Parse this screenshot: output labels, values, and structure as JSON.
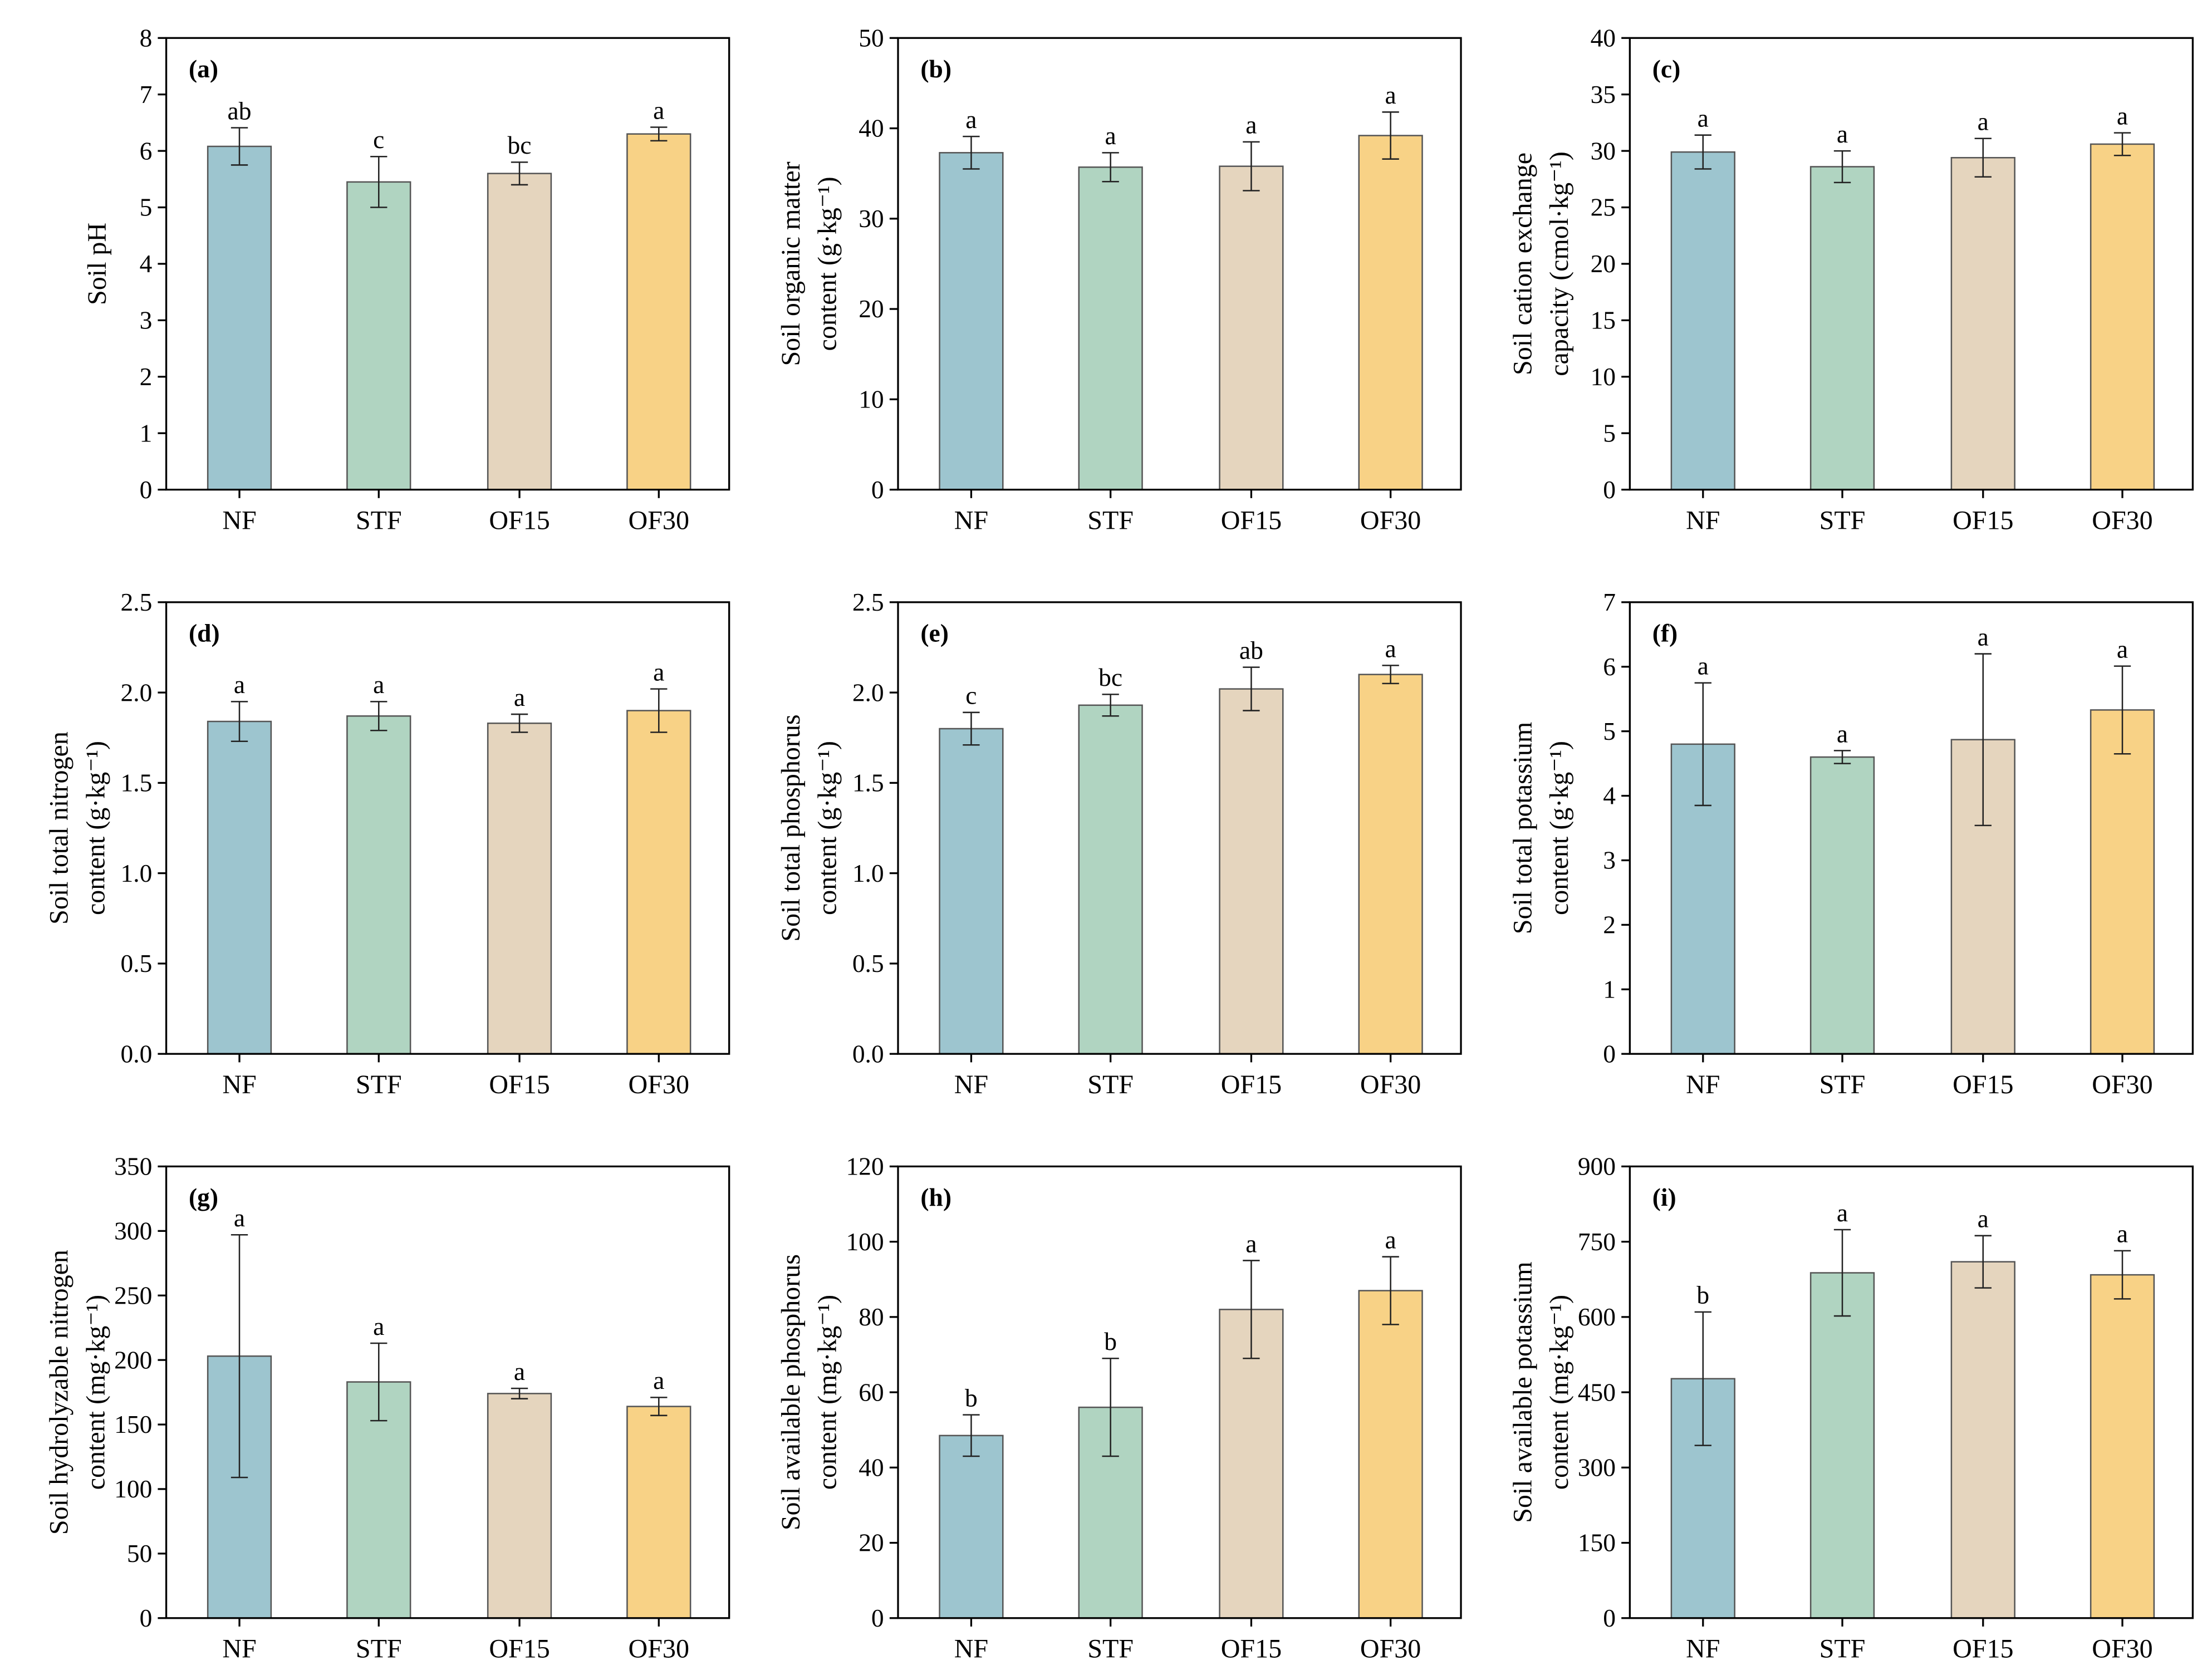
{
  "colors": {
    "NF": "#9DC5CF",
    "STF": "#B0D4C1",
    "OF15": "#E5D5BE",
    "OF30": "#F8D286",
    "edge": "#555555",
    "axis": "#000000"
  },
  "chart_data": [
    {
      "type": "bar",
      "panel": "(a)",
      "ylabel": [
        "Soil pH"
      ],
      "categories": [
        "NF",
        "STF",
        "OF15",
        "OF30"
      ],
      "ylim": [
        0,
        8
      ],
      "yticks": [
        "0",
        "1",
        "2",
        "3",
        "4",
        "5",
        "6",
        "7",
        "8"
      ],
      "values": [
        6.08,
        5.45,
        5.6,
        6.3
      ],
      "errors": [
        0.33,
        0.45,
        0.2,
        0.12
      ],
      "letters": [
        "ab",
        "c",
        "bc",
        "a"
      ]
    },
    {
      "type": "bar",
      "panel": "(b)",
      "ylabel": [
        "Soil organic matter",
        "content (g·kg⁻¹)"
      ],
      "categories": [
        "NF",
        "STF",
        "OF15",
        "OF30"
      ],
      "ylim": [
        0,
        50
      ],
      "yticks": [
        "0",
        "10",
        "20",
        "30",
        "40",
        "50"
      ],
      "values": [
        37.3,
        35.7,
        35.8,
        39.2
      ],
      "errors": [
        1.8,
        1.6,
        2.7,
        2.6
      ],
      "letters": [
        "a",
        "a",
        "a",
        "a"
      ]
    },
    {
      "type": "bar",
      "panel": "(c)",
      "ylabel": [
        "Soil cation exchange",
        "capacity (cmol·kg⁻¹)"
      ],
      "categories": [
        "NF",
        "STF",
        "OF15",
        "OF30"
      ],
      "ylim": [
        0,
        40
      ],
      "yticks": [
        "0",
        "5",
        "10",
        "15",
        "20",
        "25",
        "30",
        "35",
        "40"
      ],
      "values": [
        29.9,
        28.6,
        29.4,
        30.6
      ],
      "errors": [
        1.5,
        1.4,
        1.7,
        1.0
      ],
      "letters": [
        "a",
        "a",
        "a",
        "a"
      ]
    },
    {
      "type": "bar",
      "panel": "(d)",
      "ylabel": [
        "Soil total nitrogen",
        "content (g·kg⁻¹)"
      ],
      "categories": [
        "NF",
        "STF",
        "OF15",
        "OF30"
      ],
      "ylim": [
        0,
        2.5
      ],
      "yticks": [
        "0.0",
        "0.5",
        "1.0",
        "1.5",
        "2.0",
        "2.5"
      ],
      "values": [
        1.84,
        1.87,
        1.83,
        1.9
      ],
      "errors": [
        0.11,
        0.08,
        0.05,
        0.12
      ],
      "letters": [
        "a",
        "a",
        "a",
        "a"
      ]
    },
    {
      "type": "bar",
      "panel": "(e)",
      "ylabel": [
        "Soil total phosphorus",
        "content (g·kg⁻¹)"
      ],
      "categories": [
        "NF",
        "STF",
        "OF15",
        "OF30"
      ],
      "ylim": [
        0,
        2.5
      ],
      "yticks": [
        "0.0",
        "0.5",
        "1.0",
        "1.5",
        "2.0",
        "2.5"
      ],
      "values": [
        1.8,
        1.93,
        2.02,
        2.1
      ],
      "errors": [
        0.09,
        0.06,
        0.12,
        0.05
      ],
      "letters": [
        "c",
        "bc",
        "ab",
        "a"
      ]
    },
    {
      "type": "bar",
      "panel": "(f)",
      "ylabel": [
        "Soil total potassium",
        "content (g·kg⁻¹)"
      ],
      "categories": [
        "NF",
        "STF",
        "OF15",
        "OF30"
      ],
      "ylim": [
        0,
        7
      ],
      "yticks": [
        "0",
        "1",
        "2",
        "3",
        "4",
        "5",
        "6",
        "7"
      ],
      "values": [
        4.8,
        4.6,
        4.87,
        5.33
      ],
      "errors": [
        0.95,
        0.1,
        1.33,
        0.68
      ],
      "letters": [
        "a",
        "a",
        "a",
        "a"
      ]
    },
    {
      "type": "bar",
      "panel": "(g)",
      "ylabel": [
        "Soil hydrolyzable nitrogen",
        "content (mg·kg⁻¹)"
      ],
      "categories": [
        "NF",
        "STF",
        "OF15",
        "OF30"
      ],
      "ylim": [
        0,
        350
      ],
      "yticks": [
        "0",
        "50",
        "100",
        "150",
        "200",
        "250",
        "300",
        "350"
      ],
      "values": [
        203,
        183,
        174,
        164
      ],
      "errors": [
        94,
        30,
        4,
        7
      ],
      "letters": [
        "a",
        "a",
        "a",
        "a"
      ]
    },
    {
      "type": "bar",
      "panel": "(h)",
      "ylabel": [
        "Soil available phosphorus",
        "content (mg·kg⁻¹)"
      ],
      "categories": [
        "NF",
        "STF",
        "OF15",
        "OF30"
      ],
      "ylim": [
        0,
        120
      ],
      "yticks": [
        "0",
        "20",
        "40",
        "60",
        "80",
        "100",
        "120"
      ],
      "values": [
        48.5,
        56,
        82,
        87
      ],
      "errors": [
        5.5,
        13,
        13,
        9
      ],
      "letters": [
        "b",
        "b",
        "a",
        "a"
      ]
    },
    {
      "type": "bar",
      "panel": "(i)",
      "ylabel": [
        "Soil available potassium",
        "content (mg·kg⁻¹)"
      ],
      "categories": [
        "NF",
        "STF",
        "OF15",
        "OF30"
      ],
      "ylim": [
        0,
        900
      ],
      "yticks": [
        "0",
        "150",
        "300",
        "450",
        "600",
        "750",
        "900"
      ],
      "values": [
        477,
        688,
        710,
        684
      ],
      "errors": [
        133,
        86,
        52,
        48
      ],
      "letters": [
        "b",
        "a",
        "a",
        "a"
      ]
    }
  ]
}
